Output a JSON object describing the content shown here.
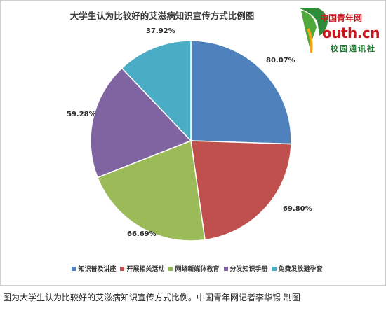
{
  "chart_data": {
    "type": "pie",
    "title": "大学生认为比较好的艾滋病知识宣传方式比例图",
    "slices": [
      {
        "name": "知识普及讲座",
        "value": 80.07,
        "label": "80.07%",
        "color": "#4f81bd"
      },
      {
        "name": "开展相关活动",
        "value": 69.8,
        "label": "69.80%",
        "color": "#c0504d"
      },
      {
        "name": "网络新媒体教育",
        "value": 66.69,
        "label": "66.69%",
        "color": "#9bbb59"
      },
      {
        "name": "分发知识手册",
        "value": 59.28,
        "label": "59.28%",
        "color": "#8064a2"
      },
      {
        "name": "免费发放避孕套",
        "value": 37.92,
        "label": "37.92%",
        "color": "#4bacc6"
      }
    ],
    "legend_placement": "bottom"
  },
  "logo": {
    "cn_text": "中国青年网",
    "domain": "outh.cn",
    "sub_text": "校园通讯社"
  },
  "caption": "图为大学生认为比较好的艾滋病知识宣传方式比例。中国青年网记者李华锡 制图"
}
